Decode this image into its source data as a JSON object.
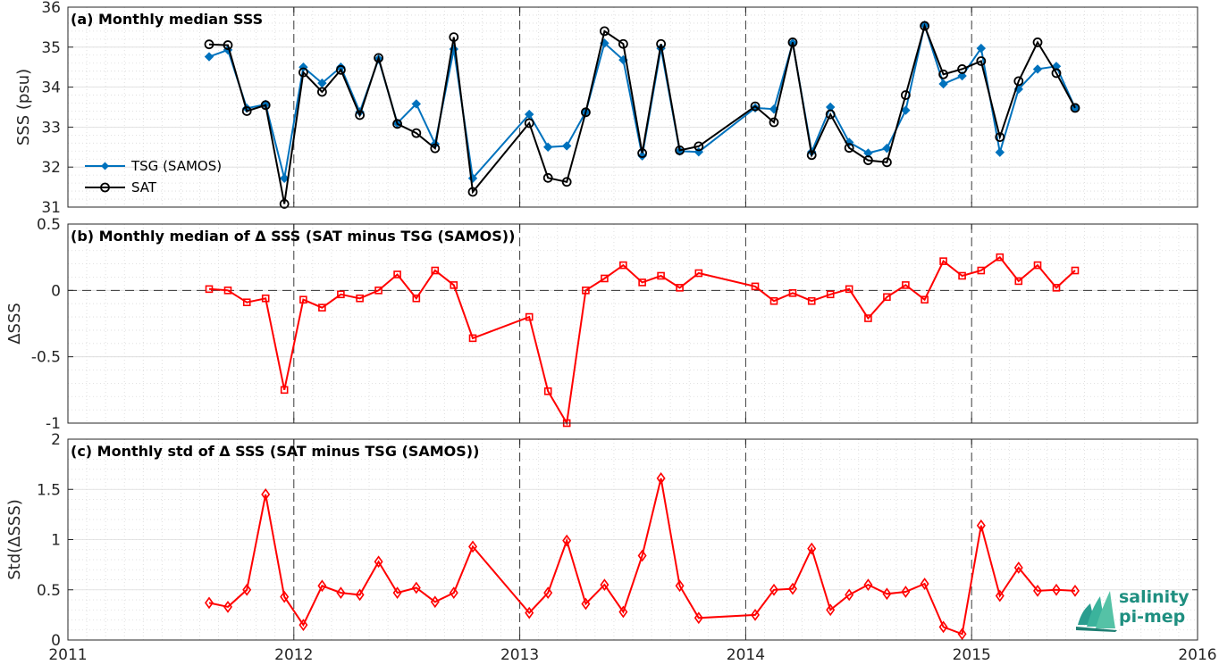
{
  "chart_data": [
    {
      "type": "line",
      "title": "(a) Monthly median SSS",
      "xlabel": "",
      "ylabel": "SSS (psu)",
      "xlim": [
        2011,
        2016
      ],
      "ylim": [
        31,
        36
      ],
      "xticks": [
        "2011",
        "2012",
        "2013",
        "2014",
        "2015",
        "2016"
      ],
      "yticks": [
        "31",
        "32",
        "33",
        "34",
        "35",
        "36"
      ],
      "grid": true,
      "legend_position": "bottom-left",
      "series": [
        {
          "name": "TSG (SAMOS)",
          "color": "#0072BD",
          "marker": "diamond-filled",
          "points": [
            [
              2011.625,
              34.76
            ],
            [
              2011.708,
              34.93
            ],
            [
              2011.792,
              33.47
            ],
            [
              2011.875,
              33.57
            ],
            [
              2011.958,
              31.72
            ],
            [
              2012.042,
              34.5
            ],
            [
              2012.125,
              34.1
            ],
            [
              2012.208,
              34.5
            ],
            [
              2012.292,
              33.38
            ],
            [
              2012.375,
              34.7
            ],
            [
              2012.458,
              33.1
            ],
            [
              2012.542,
              33.58
            ],
            [
              2012.625,
              32.58
            ],
            [
              2012.708,
              34.95
            ],
            [
              2012.792,
              31.72
            ],
            [
              2013.042,
              33.32
            ],
            [
              2013.125,
              32.5
            ],
            [
              2013.208,
              32.53
            ],
            [
              2013.292,
              33.38
            ],
            [
              2013.375,
              35.1
            ],
            [
              2013.458,
              34.68
            ],
            [
              2013.542,
              32.28
            ],
            [
              2013.625,
              34.97
            ],
            [
              2013.708,
              32.4
            ],
            [
              2013.792,
              32.38
            ],
            [
              2014.042,
              33.48
            ],
            [
              2014.125,
              33.45
            ],
            [
              2014.208,
              35.1
            ],
            [
              2014.292,
              32.38
            ],
            [
              2014.375,
              33.5
            ],
            [
              2014.458,
              32.62
            ],
            [
              2014.542,
              32.35
            ],
            [
              2014.625,
              32.47
            ],
            [
              2014.708,
              33.42
            ],
            [
              2014.792,
              35.55
            ],
            [
              2014.875,
              34.08
            ],
            [
              2014.958,
              34.28
            ],
            [
              2015.042,
              34.97
            ],
            [
              2015.125,
              32.37
            ],
            [
              2015.208,
              33.95
            ],
            [
              2015.292,
              34.45
            ],
            [
              2015.375,
              34.52
            ],
            [
              2015.458,
              33.48
            ]
          ]
        },
        {
          "name": "SAT",
          "color": "#000000",
          "marker": "circle-open",
          "points": [
            [
              2011.625,
              35.07
            ],
            [
              2011.708,
              35.05
            ],
            [
              2011.792,
              33.4
            ],
            [
              2011.875,
              33.55
            ],
            [
              2011.958,
              31.08
            ],
            [
              2012.042,
              34.37
            ],
            [
              2012.125,
              33.88
            ],
            [
              2012.208,
              34.43
            ],
            [
              2012.292,
              33.3
            ],
            [
              2012.375,
              34.73
            ],
            [
              2012.458,
              33.08
            ],
            [
              2012.542,
              32.85
            ],
            [
              2012.625,
              32.47
            ],
            [
              2012.708,
              35.25
            ],
            [
              2012.792,
              31.38
            ],
            [
              2013.042,
              33.1
            ],
            [
              2013.125,
              31.73
            ],
            [
              2013.208,
              31.63
            ],
            [
              2013.292,
              33.37
            ],
            [
              2013.375,
              35.4
            ],
            [
              2013.458,
              35.08
            ],
            [
              2013.542,
              32.35
            ],
            [
              2013.625,
              35.08
            ],
            [
              2013.708,
              32.42
            ],
            [
              2013.792,
              32.52
            ],
            [
              2014.042,
              33.52
            ],
            [
              2014.125,
              33.12
            ],
            [
              2014.208,
              35.12
            ],
            [
              2014.292,
              32.3
            ],
            [
              2014.375,
              33.32
            ],
            [
              2014.458,
              32.48
            ],
            [
              2014.542,
              32.17
            ],
            [
              2014.625,
              32.12
            ],
            [
              2014.708,
              33.8
            ],
            [
              2014.792,
              35.53
            ],
            [
              2014.875,
              34.32
            ],
            [
              2014.958,
              34.45
            ],
            [
              2015.042,
              34.65
            ],
            [
              2015.125,
              32.75
            ],
            [
              2015.208,
              34.15
            ],
            [
              2015.292,
              35.12
            ],
            [
              2015.375,
              34.35
            ],
            [
              2015.458,
              33.48
            ]
          ]
        }
      ]
    },
    {
      "type": "line",
      "title": "(b) Monthly median of Δ SSS (SAT minus TSG (SAMOS))",
      "xlabel": "",
      "ylabel": "ΔSSS",
      "xlim": [
        2011,
        2016
      ],
      "ylim": [
        -1,
        0.5
      ],
      "yticks": [
        "-1",
        "-0.5",
        "0",
        "0.5"
      ],
      "grid": true,
      "reference_line": 0,
      "series": [
        {
          "name": "",
          "color": "#FF0000",
          "marker": "square-open",
          "points": [
            [
              2011.625,
              0.01
            ],
            [
              2011.708,
              0.0
            ],
            [
              2011.792,
              -0.09
            ],
            [
              2011.875,
              -0.06
            ],
            [
              2011.958,
              -0.75
            ],
            [
              2012.042,
              -0.07
            ],
            [
              2012.125,
              -0.13
            ],
            [
              2012.208,
              -0.03
            ],
            [
              2012.292,
              -0.06
            ],
            [
              2012.375,
              0.0
            ],
            [
              2012.458,
              0.12
            ],
            [
              2012.542,
              -0.06
            ],
            [
              2012.625,
              0.15
            ],
            [
              2012.708,
              0.04
            ],
            [
              2012.792,
              -0.36
            ],
            [
              2013.042,
              -0.2
            ],
            [
              2013.125,
              -0.76
            ],
            [
              2013.208,
              -1.0
            ],
            [
              2013.292,
              0.0
            ],
            [
              2013.375,
              0.09
            ],
            [
              2013.458,
              0.19
            ],
            [
              2013.542,
              0.06
            ],
            [
              2013.625,
              0.11
            ],
            [
              2013.708,
              0.02
            ],
            [
              2013.792,
              0.13
            ],
            [
              2014.042,
              0.03
            ],
            [
              2014.125,
              -0.08
            ],
            [
              2014.208,
              -0.02
            ],
            [
              2014.292,
              -0.08
            ],
            [
              2014.375,
              -0.03
            ],
            [
              2014.458,
              0.01
            ],
            [
              2014.542,
              -0.21
            ],
            [
              2014.625,
              -0.05
            ],
            [
              2014.708,
              0.04
            ],
            [
              2014.792,
              -0.07
            ],
            [
              2014.875,
              0.22
            ],
            [
              2014.958,
              0.11
            ],
            [
              2015.042,
              0.15
            ],
            [
              2015.125,
              0.25
            ],
            [
              2015.208,
              0.07
            ],
            [
              2015.292,
              0.19
            ],
            [
              2015.375,
              0.02
            ],
            [
              2015.458,
              0.15
            ]
          ]
        }
      ]
    },
    {
      "type": "line",
      "title": "(c) Monthly std of Δ SSS (SAT minus TSG (SAMOS))",
      "xlabel": "",
      "ylabel": "Std(ΔSSS)",
      "xlim": [
        2011,
        2016
      ],
      "ylim": [
        0,
        2
      ],
      "xticks": [
        "2011",
        "2012",
        "2013",
        "2014",
        "2015",
        "2016"
      ],
      "yticks": [
        "0",
        "0.5",
        "1",
        "1.5",
        "2"
      ],
      "grid": true,
      "series": [
        {
          "name": "",
          "color": "#FF0000",
          "marker": "diamond-open",
          "points": [
            [
              2011.625,
              0.37
            ],
            [
              2011.708,
              0.33
            ],
            [
              2011.792,
              0.5
            ],
            [
              2011.875,
              1.45
            ],
            [
              2011.958,
              0.43
            ],
            [
              2012.042,
              0.15
            ],
            [
              2012.125,
              0.54
            ],
            [
              2012.208,
              0.47
            ],
            [
              2012.292,
              0.45
            ],
            [
              2012.375,
              0.78
            ],
            [
              2012.458,
              0.47
            ],
            [
              2012.542,
              0.52
            ],
            [
              2012.625,
              0.38
            ],
            [
              2012.708,
              0.47
            ],
            [
              2012.792,
              0.93
            ],
            [
              2013.042,
              0.27
            ],
            [
              2013.125,
              0.47
            ],
            [
              2013.208,
              0.99
            ],
            [
              2013.292,
              0.36
            ],
            [
              2013.375,
              0.55
            ],
            [
              2013.458,
              0.28
            ],
            [
              2013.542,
              0.84
            ],
            [
              2013.625,
              1.61
            ],
            [
              2013.708,
              0.54
            ],
            [
              2013.792,
              0.22
            ],
            [
              2014.042,
              0.25
            ],
            [
              2014.125,
              0.5
            ],
            [
              2014.208,
              0.51
            ],
            [
              2014.292,
              0.91
            ],
            [
              2014.375,
              0.3
            ],
            [
              2014.458,
              0.45
            ],
            [
              2014.542,
              0.55
            ],
            [
              2014.625,
              0.46
            ],
            [
              2014.708,
              0.48
            ],
            [
              2014.792,
              0.56
            ],
            [
              2014.875,
              0.13
            ],
            [
              2014.958,
              0.06
            ],
            [
              2015.042,
              1.14
            ],
            [
              2015.125,
              0.44
            ],
            [
              2015.208,
              0.72
            ],
            [
              2015.292,
              0.49
            ],
            [
              2015.375,
              0.5
            ],
            [
              2015.458,
              0.49
            ]
          ]
        }
      ]
    }
  ],
  "logo": {
    "line1": "salinity",
    "line2": "pi-mep",
    "color": "#1f8f80"
  }
}
